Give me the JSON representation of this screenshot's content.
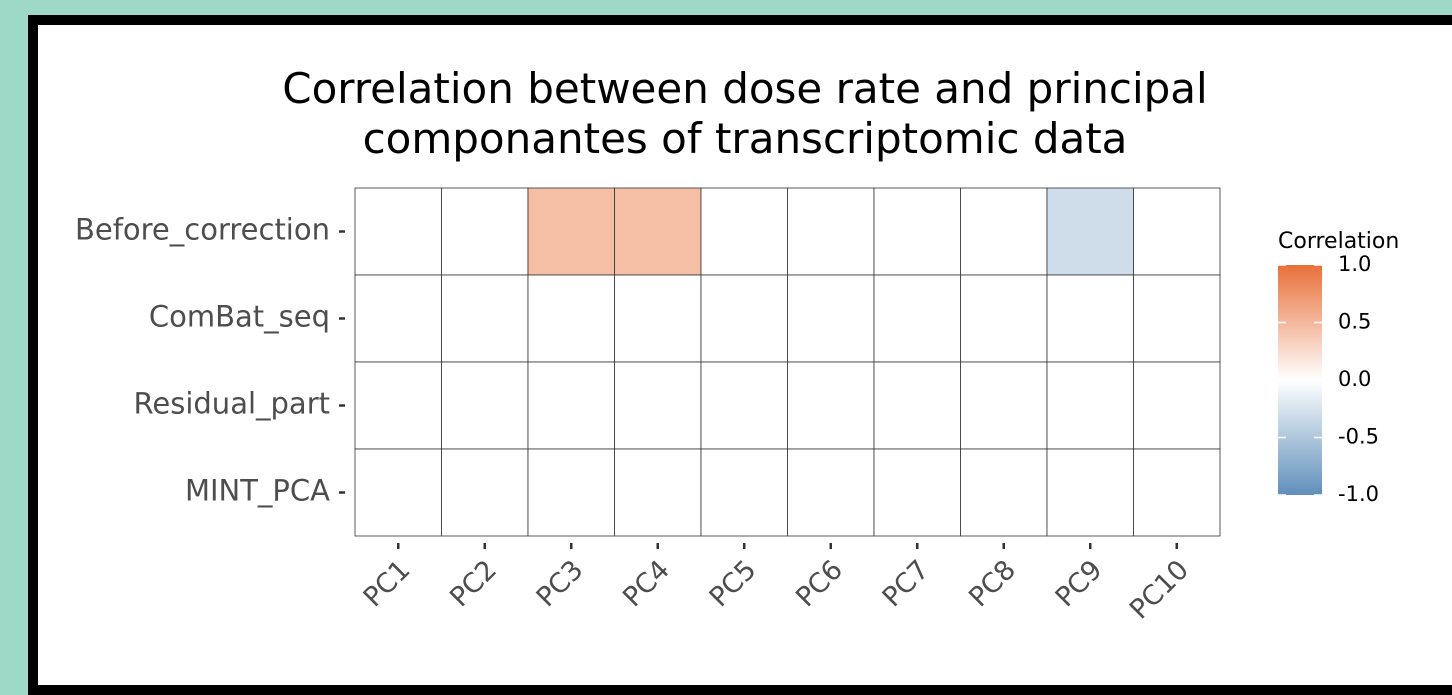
{
  "chart_data": {
    "type": "heatmap",
    "title": "Correlation between dose rate and principal componantes of transcriptomic data",
    "x_categories": [
      "PC1",
      "PC2",
      "PC3",
      "PC4",
      "PC5",
      "PC6",
      "PC7",
      "PC8",
      "PC9",
      "PC10"
    ],
    "y_categories": [
      "Before_correction",
      "ComBat_seq",
      "Residual_part",
      "MINT_PCA"
    ],
    "values": [
      [
        0,
        0,
        0.45,
        0.45,
        0,
        0,
        0,
        0,
        -0.3,
        0
      ],
      [
        0,
        0,
        0,
        0,
        0,
        0,
        0,
        0,
        0,
        0
      ],
      [
        0,
        0,
        0,
        0,
        0,
        0,
        0,
        0,
        0,
        0
      ],
      [
        0,
        0,
        0,
        0,
        0,
        0,
        0,
        0,
        0,
        0
      ]
    ],
    "legend_title": "Correlation",
    "clim": [
      -1,
      1
    ],
    "cticks": [
      {
        "value": 1,
        "label": "1.0"
      },
      0.5,
      {
        "value": 0,
        "label": "0.0"
      },
      -0.5,
      {
        "value": -1,
        "label": "-1.0"
      }
    ],
    "colors": {
      "low": "#5f8fbb",
      "mid": "#ffffff",
      "high": "#e8703a"
    }
  }
}
